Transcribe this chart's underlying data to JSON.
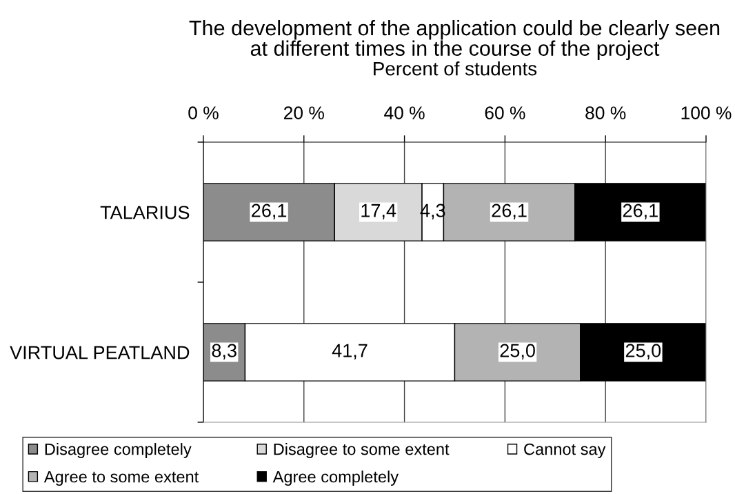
{
  "chart_data": {
    "type": "bar",
    "orientation": "horizontal",
    "stacked": true,
    "title": "The development of the application could be clearly seen\nat different times in the course of the project",
    "xlabel": "Percent of students",
    "categories": [
      "TALARIUS",
      "VIRTUAL PEATLAND"
    ],
    "series": [
      {
        "name": "Disagree completely",
        "color": "#8c8c8c",
        "values": [
          26.1,
          8.3
        ],
        "value_labels": [
          "26,1",
          "8,3"
        ]
      },
      {
        "name": "Disagree to some extent",
        "color": "#d9d9d9",
        "values": [
          17.4,
          0
        ],
        "value_labels": [
          "17,4",
          null
        ]
      },
      {
        "name": "Cannot say",
        "color": "#ffffff",
        "values": [
          4.3,
          41.7
        ],
        "value_labels": [
          "4,3",
          "41,7"
        ]
      },
      {
        "name": "Agree to some extent",
        "color": "#b3b3b3",
        "values": [
          26.1,
          25.0
        ],
        "value_labels": [
          "26,1",
          "25,0"
        ]
      },
      {
        "name": "Agree completely",
        "color": "#000000",
        "values": [
          26.1,
          25.0
        ],
        "value_labels": [
          "26,1",
          "25,0"
        ]
      }
    ],
    "xlim": [
      0,
      100
    ],
    "xticks": [
      {
        "value": 0,
        "label": "0 %"
      },
      {
        "value": 20,
        "label": "20 %"
      },
      {
        "value": 40,
        "label": "40 %"
      },
      {
        "value": 60,
        "label": "60 %"
      },
      {
        "value": 80,
        "label": "80 %"
      },
      {
        "value": 100,
        "label": "100 %"
      }
    ],
    "grid": "x",
    "legend": "bottom"
  }
}
